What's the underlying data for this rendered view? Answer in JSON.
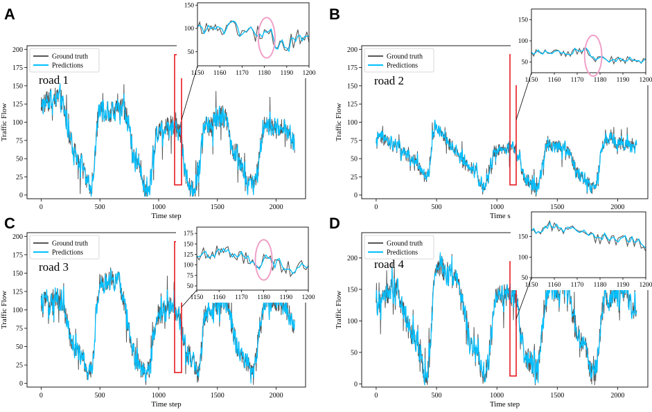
{
  "colors": {
    "ground_truth": "#555555",
    "predictions": "#00bfff",
    "highlight_box": "#e8191f",
    "circle": "#f0a0c8",
    "axis": "#000000"
  },
  "chart_data": [
    {
      "type": "line",
      "panel": "A",
      "road_label": "road 1",
      "xlabel": "Time step",
      "ylabel": "Traffic Flow",
      "xlim": [
        -120,
        2250
      ],
      "ylim": [
        -5,
        205
      ],
      "xticks": [
        0,
        500,
        1000,
        1500,
        2000
      ],
      "yticks": [
        0,
        25,
        50,
        75,
        100,
        125,
        150,
        175,
        200
      ],
      "legend": [
        "Ground truth",
        "Predictions"
      ],
      "legend_placement": "upper-left",
      "series": [
        {
          "name": "Ground truth",
          "n": 2160,
          "level_anchors": [
            [
              0,
              125
            ],
            [
              150,
              135
            ],
            [
              300,
              55
            ],
            [
              420,
              10
            ],
            [
              500,
              115
            ],
            [
              700,
              115
            ],
            [
              820,
              45
            ],
            [
              900,
              5
            ],
            [
              1000,
              90
            ],
            [
              1140,
              95
            ],
            [
              1180,
              85
            ],
            [
              1230,
              30
            ],
            [
              1300,
              5
            ],
            [
              1400,
              95
            ],
            [
              1560,
              110
            ],
            [
              1650,
              60
            ],
            [
              1760,
              15
            ],
            [
              1820,
              15
            ],
            [
              1900,
              95
            ],
            [
              2050,
              95
            ],
            [
              2160,
              70
            ]
          ],
          "noise_amplitude": 30
        },
        {
          "name": "Predictions",
          "derived_from": "Ground truth",
          "noise_amplitude": 22
        }
      ],
      "highlight": {
        "x_range": [
          1150,
          1200
        ],
        "y_range": [
          15,
          200
        ]
      },
      "inset": {
        "xlim": [
          1150,
          1200
        ],
        "ylim": [
          20,
          155
        ],
        "xticks": [
          1150,
          1160,
          1170,
          1180,
          1190,
          1200
        ],
        "yticks": [
          50,
          100,
          150
        ],
        "level_anchors": [
          [
            1150,
            100
          ],
          [
            1170,
            100
          ],
          [
            1180,
            82
          ],
          [
            1190,
            72
          ],
          [
            1200,
            85
          ]
        ],
        "noise_amplitude": 40,
        "circle_center": [
          1181,
          80
        ]
      }
    },
    {
      "type": "line",
      "panel": "B",
      "road_label": "road 2",
      "xlabel": "Time step",
      "ylabel": "Traffic Flow",
      "xlim": [
        -120,
        2250
      ],
      "ylim": [
        -5,
        205
      ],
      "xticks": [
        0,
        500,
        1000,
        1500,
        2000
      ],
      "yticks": [
        0,
        25,
        50,
        75,
        100,
        125,
        150,
        175,
        200
      ],
      "legend": [
        "Ground truth",
        "Predictions"
      ],
      "legend_placement": "upper-left",
      "series": [
        {
          "name": "Ground truth",
          "n": 2160,
          "level_anchors": [
            [
              0,
              80
            ],
            [
              150,
              70
            ],
            [
              300,
              50
            ],
            [
              420,
              25
            ],
            [
              490,
              95
            ],
            [
              600,
              70
            ],
            [
              800,
              35
            ],
            [
              900,
              10
            ],
            [
              980,
              60
            ],
            [
              1140,
              65
            ],
            [
              1250,
              20
            ],
            [
              1330,
              10
            ],
            [
              1420,
              70
            ],
            [
              1560,
              65
            ],
            [
              1700,
              25
            ],
            [
              1800,
              10
            ],
            [
              1900,
              75
            ],
            [
              2050,
              70
            ],
            [
              2160,
              65
            ]
          ],
          "noise_amplitude": 18
        },
        {
          "name": "Predictions",
          "derived_from": "Ground truth",
          "noise_amplitude": 14
        }
      ],
      "highlight": {
        "x_range": [
          1150,
          1200
        ],
        "y_range": [
          15,
          198
        ]
      },
      "inset": {
        "xlim": [
          1150,
          1200
        ],
        "ylim": [
          25,
          175
        ],
        "xticks": [
          1150,
          1160,
          1170,
          1180,
          1190,
          1200
        ],
        "yticks": [
          50,
          100,
          150
        ],
        "level_anchors": [
          [
            1150,
            72
          ],
          [
            1165,
            70
          ],
          [
            1172,
            78
          ],
          [
            1178,
            55
          ],
          [
            1190,
            55
          ],
          [
            1200,
            50
          ]
        ],
        "noise_amplitude": 18,
        "circle_center": [
          1177,
          65
        ]
      }
    },
    {
      "type": "line",
      "panel": "C",
      "road_label": "road 3",
      "xlabel": "Time step",
      "ylabel": "Traffic Flow",
      "xlim": [
        -120,
        2250
      ],
      "ylim": [
        -5,
        205
      ],
      "xticks": [
        0,
        500,
        1000,
        1500,
        2000
      ],
      "yticks": [
        0,
        25,
        50,
        75,
        100,
        125,
        150,
        175,
        200
      ],
      "legend": [
        "Ground truth",
        "Predictions"
      ],
      "legend_placement": "upper-left",
      "series": [
        {
          "name": "Ground truth",
          "n": 2160,
          "level_anchors": [
            [
              0,
              110
            ],
            [
              150,
              115
            ],
            [
              300,
              45
            ],
            [
              420,
              15
            ],
            [
              500,
              135
            ],
            [
              650,
              140
            ],
            [
              820,
              30
            ],
            [
              900,
              10
            ],
            [
              1000,
              95
            ],
            [
              1140,
              105
            ],
            [
              1250,
              40
            ],
            [
              1330,
              15
            ],
            [
              1400,
              95
            ],
            [
              1560,
              110
            ],
            [
              1700,
              40
            ],
            [
              1800,
              15
            ],
            [
              1900,
              115
            ],
            [
              2050,
              110
            ],
            [
              2160,
              80
            ]
          ],
          "noise_amplitude": 30
        },
        {
          "name": "Predictions",
          "derived_from": "Ground truth",
          "noise_amplitude": 22
        }
      ],
      "highlight": {
        "x_range": [
          1150,
          1200
        ],
        "y_range": [
          15,
          200
        ]
      },
      "inset": {
        "xlim": [
          1150,
          1200
        ],
        "ylim": [
          40,
          190
        ],
        "xticks": [
          1150,
          1160,
          1170,
          1180,
          1190,
          1200
        ],
        "yticks": [
          50,
          75,
          100,
          125,
          150,
          175
        ],
        "level_anchors": [
          [
            1150,
            120
          ],
          [
            1160,
            130
          ],
          [
            1170,
            120
          ],
          [
            1180,
            105
          ],
          [
            1190,
            90
          ],
          [
            1200,
            100
          ]
        ],
        "noise_amplitude": 40,
        "circle_center": [
          1180,
          112
        ]
      }
    },
    {
      "type": "line",
      "panel": "D",
      "road_label": "road 4",
      "xlabel": "Time step",
      "ylabel": "Traffic Flow",
      "xlim": [
        -120,
        2250
      ],
      "ylim": [
        -5,
        240
      ],
      "xticks": [
        0,
        500,
        1000,
        1500,
        2000
      ],
      "yticks": [
        0,
        50,
        100,
        150,
        200
      ],
      "legend": [
        "Ground truth",
        "Predictions"
      ],
      "legend_placement": "upper-left",
      "series": [
        {
          "name": "Ground truth",
          "n": 2160,
          "level_anchors": [
            [
              0,
              125
            ],
            [
              150,
              150
            ],
            [
              300,
              80
            ],
            [
              420,
              15
            ],
            [
              500,
              190
            ],
            [
              650,
              165
            ],
            [
              820,
              45
            ],
            [
              900,
              10
            ],
            [
              1000,
              140
            ],
            [
              1140,
              140
            ],
            [
              1250,
              40
            ],
            [
              1330,
              20
            ],
            [
              1420,
              150
            ],
            [
              1560,
              150
            ],
            [
              1700,
              70
            ],
            [
              1800,
              15
            ],
            [
              1900,
              135
            ],
            [
              2050,
              150
            ],
            [
              2160,
              110
            ]
          ],
          "noise_amplitude": 38
        },
        {
          "name": "Predictions",
          "derived_from": "Ground truth",
          "noise_amplitude": 28
        }
      ],
      "highlight": {
        "x_range": [
          1150,
          1200
        ],
        "y_range": [
          15,
          195
        ]
      },
      "inset": {
        "xlim": [
          1150,
          1200
        ],
        "ylim": [
          50,
          210
        ],
        "xticks": [
          1150,
          1160,
          1170,
          1180,
          1190,
          1200
        ],
        "yticks": [
          50,
          100,
          150
        ],
        "level_anchors": [
          [
            1150,
            165
          ],
          [
            1160,
            175
          ],
          [
            1170,
            165
          ],
          [
            1180,
            145
          ],
          [
            1190,
            140
          ],
          [
            1200,
            125
          ]
        ],
        "noise_amplitude": 30,
        "circle_center": null
      }
    }
  ]
}
